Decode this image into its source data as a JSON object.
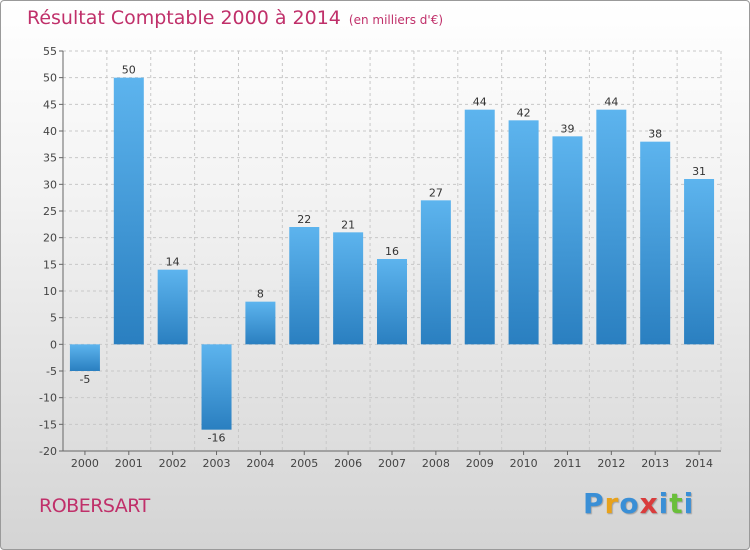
{
  "header": {
    "title": "Résultat Comptable 2000 à 2014",
    "subtitle": "(en milliers d'€)"
  },
  "footer": {
    "commune": "ROBERSART",
    "logo_letters": [
      "P",
      "r",
      "o",
      "x",
      "i",
      "t",
      "i"
    ],
    "logo_colors": [
      "#3a8fd6",
      "#e8a21b",
      "#3a8fd6",
      "#d93c3c",
      "#3a8fd6",
      "#6abf3a",
      "#3a8fd6"
    ]
  },
  "colors": {
    "bar_light": "#5db4ee",
    "bar_dark": "#2a7fc0",
    "grid": "#c8c8c8",
    "title": "#c0306a"
  },
  "chart_data": {
    "type": "bar",
    "categories": [
      "2000",
      "2001",
      "2002",
      "2003",
      "2004",
      "2005",
      "2006",
      "2007",
      "2008",
      "2009",
      "2010",
      "2011",
      "2012",
      "2013",
      "2014"
    ],
    "values": [
      -5,
      50,
      14,
      -16,
      8,
      22,
      21,
      16,
      27,
      44,
      42,
      39,
      44,
      38,
      31
    ],
    "data_labels": [
      "-5",
      "50",
      "14",
      "-16",
      "8",
      "22",
      "21",
      "16",
      "27",
      "44",
      "42",
      "39",
      "44",
      "38",
      "31"
    ],
    "yticks": [
      "-20",
      "-15",
      "-10",
      "-5",
      "0",
      "5",
      "10",
      "15",
      "20",
      "25",
      "30",
      "35",
      "40",
      "45",
      "50",
      "55"
    ],
    "ylim": [
      -20,
      55
    ],
    "grid": true,
    "title": "Résultat Comptable 2000 à 2014",
    "xlabel": "",
    "ylabel": ""
  }
}
